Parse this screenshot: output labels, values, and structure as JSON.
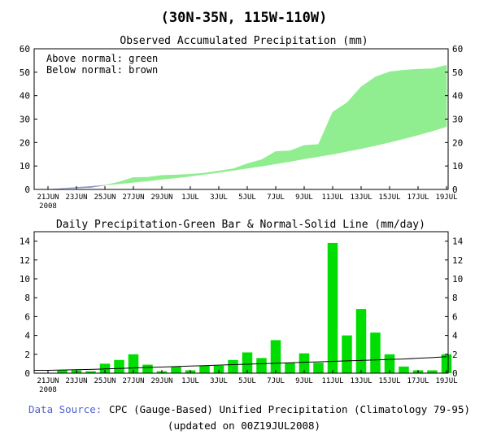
{
  "main_title": "(30N-35N, 115W-110W)",
  "footer": {
    "source_label": "Data Source:",
    "source_text": "CPC (Gauge-Based) Unified Precipitation (Climatology 79-95)",
    "updated": "(updated on 00Z19JUL2008)"
  },
  "colors": {
    "above_normal": "#90ee90",
    "below_normal_fill": "#8b96c8",
    "daily_bar": "#00dd00",
    "normal_line": "#000000",
    "source_label": "#4f5fcf"
  },
  "x_labels": [
    "21JUN",
    "23JUN",
    "25JUN",
    "27JUN",
    "29JUN",
    "1JUL",
    "3JUL",
    "5JUL",
    "7JUL",
    "9JUL",
    "11JUL",
    "13JUL",
    "15JUL",
    "17JUL",
    "19JUL"
  ],
  "x_year_label": "2008",
  "chart_data": [
    {
      "type": "area",
      "title": "Observed Accumulated Precipitation (mm)",
      "legend": [
        "Above normal: green",
        "Below normal: brown"
      ],
      "ylim": [
        0,
        60
      ],
      "yticks": [
        0,
        10,
        20,
        30,
        40,
        50,
        60
      ],
      "x": [
        "21JUN",
        "22JUN",
        "23JUN",
        "24JUN",
        "25JUN",
        "26JUN",
        "27JUN",
        "28JUN",
        "29JUN",
        "30JUN",
        "1JUL",
        "2JUL",
        "3JUL",
        "4JUL",
        "5JUL",
        "6JUL",
        "7JUL",
        "8JUL",
        "9JUL",
        "10JUL",
        "11JUL",
        "12JUL",
        "13JUL",
        "14JUL",
        "15JUL",
        "16JUL",
        "17JUL",
        "18JUL",
        "19JUL"
      ],
      "series": [
        {
          "name": "Observed",
          "values": [
            0,
            0.3,
            0.6,
            0.8,
            1.8,
            3.2,
            5.1,
            5.2,
            6.0,
            6.2,
            6.5,
            7.0,
            7.9,
            8.8,
            11.0,
            12.7,
            16.2,
            16.5,
            18.8,
            19.2,
            33.0,
            37.0,
            43.8,
            48.0,
            50.2,
            50.9,
            51.3,
            51.5,
            53.0
          ]
        },
        {
          "name": "Normal",
          "values": [
            0,
            0.4,
            0.9,
            1.3,
            1.8,
            2.4,
            3.0,
            3.6,
            4.3,
            4.9,
            5.6,
            6.4,
            7.2,
            8.1,
            9.0,
            9.9,
            10.9,
            11.9,
            13.0,
            14.0,
            15.0,
            16.2,
            17.4,
            18.7,
            20.1,
            21.6,
            23.2,
            24.9,
            26.8
          ]
        }
      ]
    },
    {
      "type": "bar",
      "title": "Daily Precipitation-Green Bar & Normal-Solid Line (mm/day)",
      "ylim": [
        0,
        15
      ],
      "yticks": [
        0,
        2,
        4,
        6,
        8,
        10,
        12,
        14
      ],
      "x": [
        "21JUN",
        "22JUN",
        "23JUN",
        "24JUN",
        "25JUN",
        "26JUN",
        "27JUN",
        "28JUN",
        "29JUN",
        "30JUN",
        "1JUL",
        "2JUL",
        "3JUL",
        "4JUL",
        "5JUL",
        "6JUL",
        "7JUL",
        "8JUL",
        "9JUL",
        "10JUL",
        "11JUL",
        "12JUL",
        "13JUL",
        "14JUL",
        "15JUL",
        "16JUL",
        "17JUL",
        "18JUL",
        "19JUL"
      ],
      "series": [
        {
          "name": "Daily",
          "values": [
            0,
            0.3,
            0.3,
            0.2,
            1.0,
            1.4,
            2.0,
            0.9,
            0.2,
            0.7,
            0.3,
            0.8,
            0.8,
            1.4,
            2.2,
            1.6,
            3.5,
            1.1,
            2.1,
            1.1,
            13.8,
            4.0,
            6.8,
            4.3,
            2.0,
            0.7,
            0.3,
            0.3,
            2.0
          ]
        },
        {
          "name": "Normal",
          "values": [
            0.3,
            0.33,
            0.37,
            0.4,
            0.45,
            0.5,
            0.55,
            0.6,
            0.65,
            0.7,
            0.75,
            0.8,
            0.85,
            0.9,
            0.95,
            1.0,
            1.05,
            1.1,
            1.15,
            1.2,
            1.25,
            1.3,
            1.35,
            1.4,
            1.45,
            1.5,
            1.58,
            1.65,
            1.75
          ]
        }
      ]
    }
  ]
}
